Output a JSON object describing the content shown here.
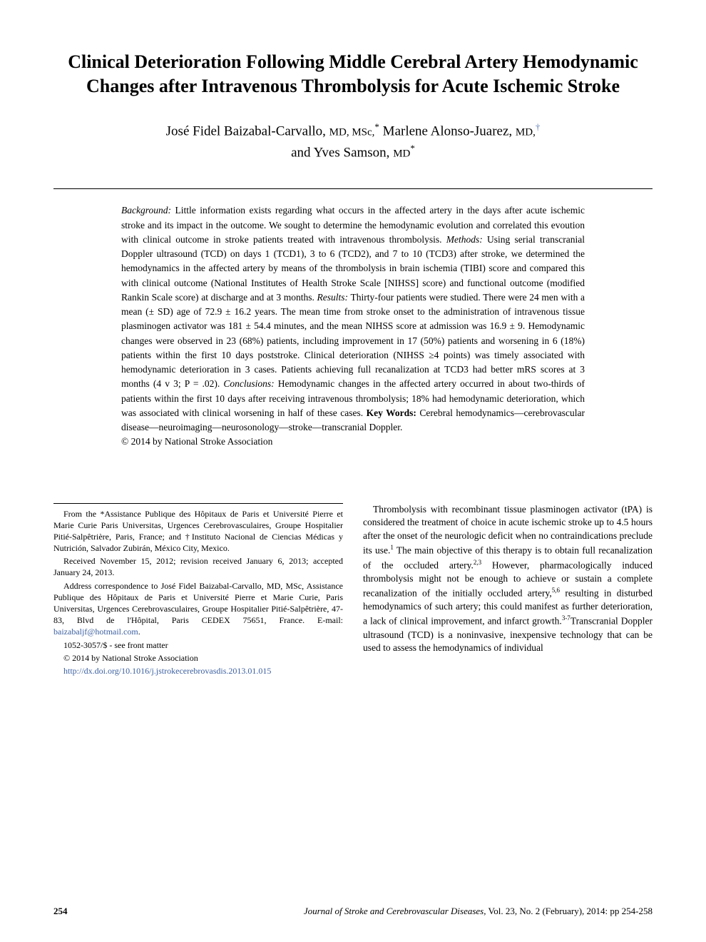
{
  "title": "Clinical Deterioration Following Middle Cerebral Artery Hemodynamic Changes after Intravenous Thrombolysis for Acute Ischemic Stroke",
  "authors": {
    "a1_name": "José Fidel Baizabal-Carvallo, ",
    "a1_deg": "MD, MSc,",
    "a1_sym": "*",
    "a2_name": " Marlene Alonso-Juarez, ",
    "a2_deg": "MD,",
    "a2_sym": "†",
    "a3_pre": "and ",
    "a3_name": "Yves Samson, ",
    "a3_deg": "MD",
    "a3_sym": "*"
  },
  "abstract": {
    "bg_label": "Background:",
    "bg": " Little information exists regarding what occurs in the affected artery in the days after acute ischemic stroke and its impact in the outcome. We sought to determine the hemodynamic evolution and correlated this evoution with clinical outcome in stroke patients treated with intravenous thrombolysis. ",
    "me_label": "Methods:",
    "me": " Using serial transcranial Doppler ultrasound (TCD) on days 1 (TCD1), 3 to 6 (TCD2), and 7 to 10 (TCD3) after stroke, we determined the hemodynamics in the affected artery by means of the thrombolysis in brain ischemia (TIBI) score and compared this with clinical outcome (National Institutes of Health Stroke Scale [NIHSS] score) and functional outcome (modified Rankin Scale score) at discharge and at 3 months. ",
    "re_label": "Results:",
    "re": " Thirty-four patients were studied. There were 24 men with a mean (± SD) age of 72.9 ± 16.2 years. The mean time from stroke onset to the administration of intravenous tissue plasminogen activator was 181 ± 54.4 minutes, and the mean NIHSS score at admission was 16.9 ± 9. Hemodynamic changes were observed in 23 (68%) patients, including improvement in 17 (50%) patients and worsening in 6 (18%) patients within the first 10 days poststroke. Clinical deterioration (NIHSS ≥4 points) was timely associated with hemodynamic deterioration in 3 cases. Patients achieving full recanalization at TCD3 had better mRS scores at 3 months (4 v 3; P = .02). ",
    "co_label": "Conclusions:",
    "co": " Hemodynamic changes in the affected artery occurred in about two-thirds of patients within the first 10 days after receiving intravenous thrombolysis; 18% had hemodynamic deterioration, which was associated with clinical worsening in half of these cases. ",
    "kw_label": "Key Words:",
    "kw": " Cerebral hemodynamics—cerebrovascular disease—neuroimaging—neurosonology—stroke—transcranial Doppler.",
    "copyright": "© 2014 by National Stroke Association"
  },
  "affiliations": {
    "p1": "From the *Assistance Publique des Hôpitaux de Paris et Université Pierre et Marie Curie Paris Universitas, Urgences Cerebrovasculaires, Groupe Hospitalier Pitié-Salpêtrière, Paris, France; and †Instituto Nacional de Ciencias Médicas y Nutrición, Salvador Zubirán, México City, Mexico.",
    "p2": "Received November 15, 2012; revision received January 6, 2013; accepted January 24, 2013.",
    "p3a": "Address correspondence to José Fidel Baizabal-Carvallo, MD, MSc, Assistance Publique des Hôpitaux de Paris et Université Pierre et Marie Curie, Paris Universitas, Urgences Cerebrovasculaires, Groupe Hospitalier Pitié-Salpêtrière, 47-83, Blvd de l'Hôpital, Paris CEDEX 75651, France. E-mail: ",
    "p3_email": "baizabaljf@hotmail.com",
    "p3b": ".",
    "p4": "1052-3057/$ - see front matter",
    "p5": "© 2014 by National Stroke Association",
    "doi": "http://dx.doi.org/10.1016/j.jstrokecerebrovasdis.2013.01.015"
  },
  "intro": {
    "s1": "Thrombolysis with recombinant tissue plasminogen activator (tPA) is considered the treatment of choice in acute ischemic stroke up to 4.5 hours after the onset of the neurologic deficit when no contraindications preclude its use.",
    "c1": "1",
    "s2": " The main objective of this therapy is to obtain full recanalization of the occluded artery.",
    "c2": "2,3",
    "s3": " However, pharmacologically induced thrombolysis might not be enough to achieve or sustain a complete recanalization of the initially occluded artery,",
    "c3": "5,6",
    "s4": " resulting in disturbed hemodynamics of such artery; this could manifest as further deterioration, a lack of clinical improvement, and infarct growth.",
    "c4": "3-7",
    "s5": "Transcranial Doppler ultrasound (TCD) is a noninvasive, inexpensive technology that can be used to assess the hemodynamics of individual"
  },
  "footer": {
    "page": "254",
    "journal": "Journal of Stroke and Cerebrovascular Diseases,",
    "citation": " Vol. 23, No. 2 (February), 2014: pp 254-258"
  },
  "colors": {
    "text": "#000000",
    "link": "#3b5fa0",
    "bg": "#ffffff"
  }
}
